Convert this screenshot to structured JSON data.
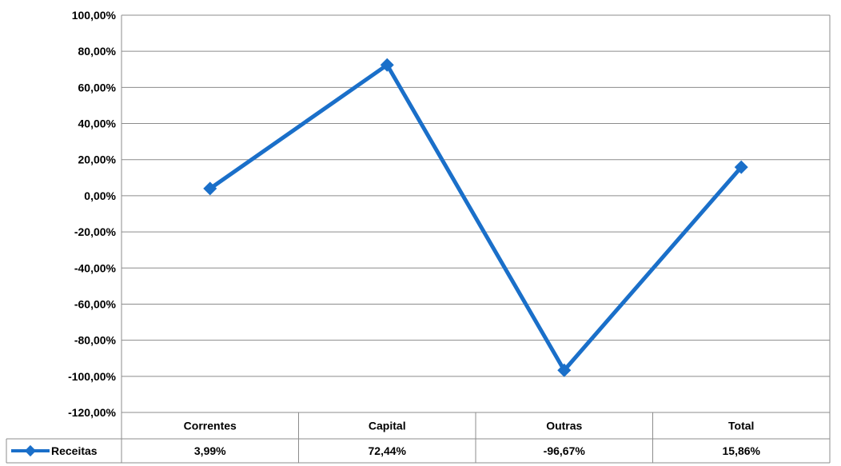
{
  "chart_data": {
    "type": "line",
    "categories": [
      "Correntes",
      "Capital",
      "Outras",
      "Total"
    ],
    "series": [
      {
        "name": "Receitas",
        "values": [
          3.99,
          72.44,
          -96.67,
          15.86
        ],
        "value_labels": [
          "3,99%",
          "72,44%",
          "-96,67%",
          "15,86%"
        ],
        "color": "#1a6fc9"
      }
    ],
    "ylim": [
      -120,
      100
    ],
    "yticks": [
      100,
      80,
      60,
      40,
      20,
      0,
      -20,
      -40,
      -60,
      -80,
      -100,
      -120
    ],
    "ytick_labels": [
      "100,00%",
      "80,00%",
      "60,00%",
      "40,00%",
      "20,00%",
      "0,00%",
      "-20,00%",
      "-40,00%",
      "-60,00%",
      "-80,00%",
      "-100,00%",
      "-120,00%"
    ],
    "grid": true,
    "legend": "data-table",
    "title": "",
    "xlabel": "",
    "ylabel": ""
  }
}
